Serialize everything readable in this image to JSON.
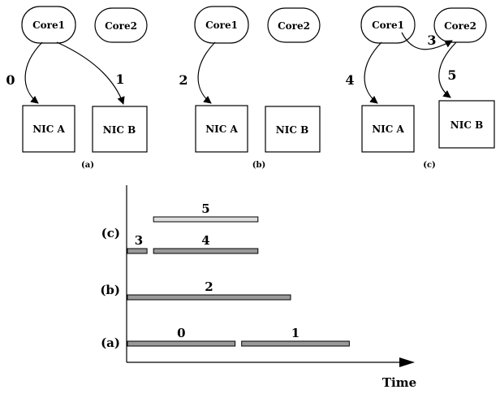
{
  "diagrams": [
    {
      "caption": "(a)",
      "cores": [
        "Core1",
        "Core2"
      ],
      "nics": [
        "NIC A",
        "NIC B"
      ],
      "edges": [
        "0",
        "1"
      ]
    },
    {
      "caption": "(b)",
      "cores": [
        "Core1",
        "Core2"
      ],
      "nics": [
        "NIC A",
        "NIC B"
      ],
      "edges": [
        "2"
      ]
    },
    {
      "caption": "(c)",
      "cores": [
        "Core1",
        "Core2"
      ],
      "nics": [
        "NIC A",
        "NIC B"
      ],
      "edges": [
        "4",
        "3",
        "5"
      ]
    }
  ],
  "timeline": {
    "axis_label": "Time",
    "rows": [
      {
        "label": "(c)",
        "bars": [
          {
            "label": "3",
            "start": 0,
            "end": 1.2,
            "color": "#999999"
          },
          {
            "label": "4",
            "start": 1.6,
            "end": 8.0,
            "color": "#999999"
          }
        ],
        "upper_bars": [
          {
            "label": "5",
            "start": 1.6,
            "end": 8.0,
            "color": "#dddddd"
          }
        ]
      },
      {
        "label": "(b)",
        "bars": [
          {
            "label": "2",
            "start": 0,
            "end": 10.0,
            "color": "#999999"
          }
        ]
      },
      {
        "label": "(a)",
        "bars": [
          {
            "label": "0",
            "start": 0,
            "end": 6.6,
            "color": "#999999"
          },
          {
            "label": "1",
            "start": 7.0,
            "end": 13.6,
            "color": "#999999"
          }
        ]
      }
    ]
  }
}
